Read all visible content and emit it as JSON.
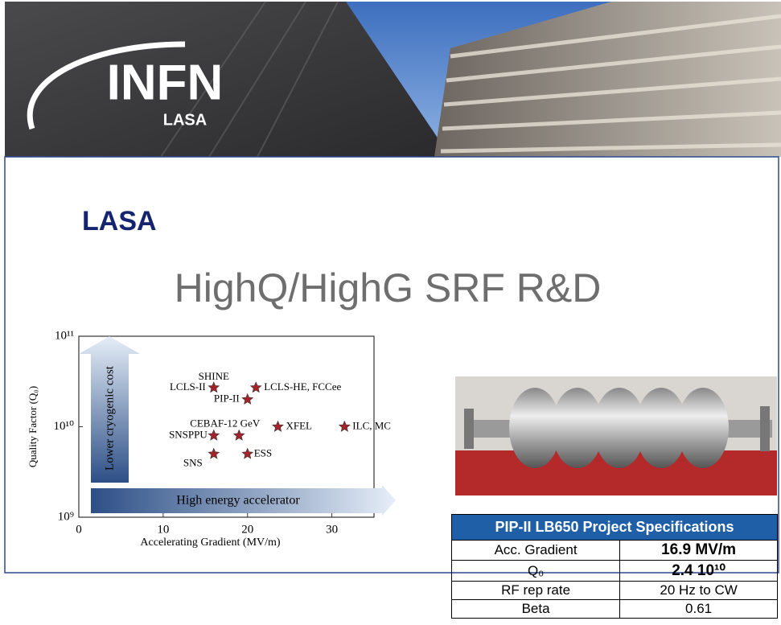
{
  "header": {
    "logo": "INFN",
    "logo_sub": "LASA"
  },
  "section": "LASA",
  "title": "HighQ/HighG SRF R&D",
  "chart_data": {
    "type": "scatter",
    "xlabel": "Accelerating Gradient (MV/m)",
    "ylabel": "Quality Factor (Q₀)",
    "x": [
      16,
      21,
      20,
      23.6,
      31.5,
      16,
      19,
      16,
      20
    ],
    "values": [
      27000000000,
      27000000000,
      20000000000,
      10000000000,
      10000000000,
      8000000000,
      8000000000,
      5000000000,
      5000000000
    ],
    "point_labels": [
      "LCLS-II",
      "LCLS-HE, FCCee",
      "PIP-II",
      "XFEL",
      "ILC, MC",
      "SNSPPU",
      "CEBAF-12 GeV",
      "SNS",
      "ESS"
    ],
    "annotations": [
      "SHINE",
      "Lower cryogenic cost",
      "High energy accelerator"
    ],
    "color": "#a3242a",
    "xlim": [
      0,
      35
    ],
    "xticks": [
      0,
      10,
      20,
      30
    ],
    "ylim": [
      1000000000,
      100000000000
    ],
    "log_y": true,
    "yticks": [
      {
        "value": 1000000000,
        "label": "10⁹"
      },
      {
        "value": 10000000000,
        "label": "10¹⁰"
      },
      {
        "value": 100000000000,
        "label": "10¹¹"
      }
    ]
  },
  "table": {
    "title": "PIP-II LB650 Project Specifications",
    "rows": [
      [
        "Acc. Gradient",
        "16.9 MV/m"
      ],
      [
        "Q₀",
        "2.4 10¹⁰"
      ],
      [
        "RF rep rate",
        "20 Hz to CW"
      ],
      [
        "Beta",
        "0.61"
      ]
    ]
  }
}
